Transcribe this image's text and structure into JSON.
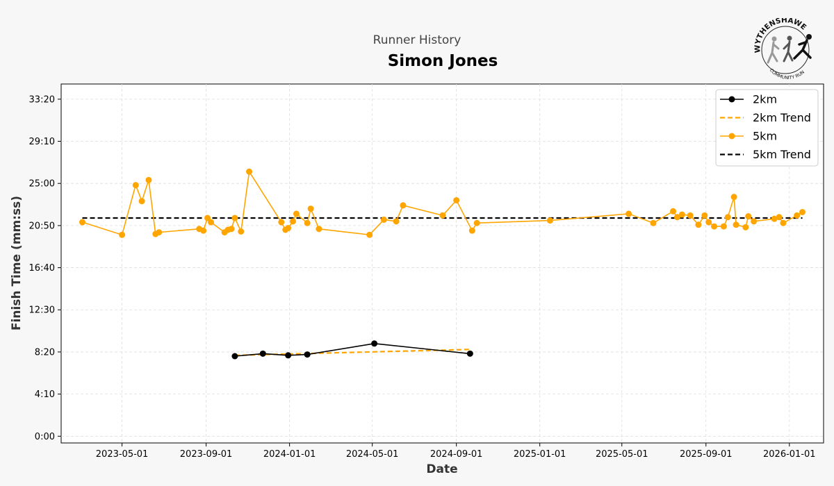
{
  "header": {
    "subtitle": "Runner History",
    "title": "Simon Jones"
  },
  "logo": {
    "text_top": "WYTHENSHAWE",
    "text_bottom": "COMMUNITY RUN"
  },
  "colors": {
    "five_km": "#ffa500",
    "two_km": "#000000",
    "background": "#f7f7f7"
  },
  "chart_data": {
    "type": "line",
    "xlabel": "Date",
    "ylabel": "Finish Time (mm:ss)",
    "x_is_date": true,
    "xlim": [
      "2023-02-01",
      "2026-02-20"
    ],
    "ylim": [
      "-0:40",
      "34:50"
    ],
    "x_ticks": [
      "2023-05-01",
      "2023-09-01",
      "2024-01-01",
      "2024-05-01",
      "2024-09-01",
      "2025-01-01",
      "2025-05-01",
      "2025-09-01",
      "2026-01-01"
    ],
    "y_ticks": [
      "0:00",
      "4:10",
      "8:20",
      "12:30",
      "16:40",
      "20:50",
      "25:00",
      "29:10",
      "33:20"
    ],
    "grid": true,
    "legend": {
      "position": "top-right",
      "entries": [
        "2km",
        "2km Trend",
        "5km",
        "5km Trend"
      ]
    },
    "series": [
      {
        "name": "2km",
        "style": "solid-markers",
        "color": "#000000",
        "points": [
          [
            "2023-10-13",
            "7:55"
          ],
          [
            "2023-11-23",
            "8:10"
          ],
          [
            "2023-12-30",
            "8:00"
          ],
          [
            "2024-01-27",
            "8:05"
          ],
          [
            "2024-05-04",
            "9:10"
          ],
          [
            "2024-09-21",
            "8:10"
          ]
        ]
      },
      {
        "name": "2km Trend",
        "style": "dashed",
        "color": "#ffa500",
        "points": [
          [
            "2023-10-13",
            "8:00"
          ],
          [
            "2024-09-21",
            "8:35"
          ]
        ]
      },
      {
        "name": "5km",
        "style": "solid-markers",
        "color": "#ffa500",
        "points": [
          [
            "2023-03-04",
            "21:10"
          ],
          [
            "2023-05-01",
            "19:55"
          ],
          [
            "2023-05-21",
            "24:50"
          ],
          [
            "2023-05-30",
            "23:15"
          ],
          [
            "2023-06-09",
            "25:20"
          ],
          [
            "2023-06-19",
            "20:00"
          ],
          [
            "2023-06-24",
            "20:10"
          ],
          [
            "2023-08-22",
            "20:30"
          ],
          [
            "2023-08-28",
            "20:20"
          ],
          [
            "2023-09-03",
            "21:35"
          ],
          [
            "2023-09-08",
            "21:10"
          ],
          [
            "2023-09-28",
            "20:10"
          ],
          [
            "2023-10-03",
            "20:25"
          ],
          [
            "2023-10-08",
            "20:30"
          ],
          [
            "2023-10-13",
            "21:35"
          ],
          [
            "2023-10-22",
            "20:15"
          ],
          [
            "2023-11-03",
            "26:10"
          ],
          [
            "2023-12-20",
            "21:10"
          ],
          [
            "2023-12-26",
            "20:25"
          ],
          [
            "2023-12-30",
            "20:35"
          ],
          [
            "2024-01-06",
            "21:15"
          ],
          [
            "2024-01-11",
            "22:00"
          ],
          [
            "2024-01-27",
            "21:05"
          ],
          [
            "2024-02-01",
            "22:30"
          ],
          [
            "2024-02-13",
            "20:30"
          ],
          [
            "2024-04-27",
            "19:55"
          ],
          [
            "2024-05-18",
            "21:25"
          ],
          [
            "2024-06-05",
            "21:15"
          ],
          [
            "2024-06-15",
            "22:50"
          ],
          [
            "2024-08-12",
            "21:50"
          ],
          [
            "2024-09-01",
            "23:20"
          ],
          [
            "2024-09-24",
            "20:20"
          ],
          [
            "2024-10-01",
            "21:05"
          ],
          [
            "2025-01-16",
            "21:20"
          ],
          [
            "2025-05-11",
            "22:00"
          ],
          [
            "2025-06-16",
            "21:05"
          ],
          [
            "2025-07-15",
            "22:15"
          ],
          [
            "2025-07-21",
            "21:40"
          ],
          [
            "2025-07-28",
            "21:55"
          ],
          [
            "2025-08-09",
            "21:50"
          ],
          [
            "2025-08-21",
            "20:55"
          ],
          [
            "2025-08-30",
            "21:50"
          ],
          [
            "2025-09-05",
            "21:10"
          ],
          [
            "2025-09-13",
            "20:45"
          ],
          [
            "2025-09-27",
            "20:45"
          ],
          [
            "2025-10-03",
            "21:40"
          ],
          [
            "2025-10-12",
            "23:40"
          ],
          [
            "2025-10-15",
            "20:55"
          ],
          [
            "2025-10-29",
            "20:40"
          ],
          [
            "2025-11-02",
            "21:45"
          ],
          [
            "2025-11-10",
            "21:15"
          ],
          [
            "2025-12-10",
            "21:30"
          ],
          [
            "2025-12-17",
            "21:40"
          ],
          [
            "2025-12-23",
            "21:05"
          ],
          [
            "2026-01-12",
            "21:50"
          ],
          [
            "2026-01-20",
            "22:10"
          ]
        ]
      },
      {
        "name": "5km Trend",
        "style": "dashed",
        "color": "#000000",
        "points": [
          [
            "2023-03-04",
            "21:35"
          ],
          [
            "2026-01-20",
            "21:35"
          ]
        ]
      }
    ]
  }
}
